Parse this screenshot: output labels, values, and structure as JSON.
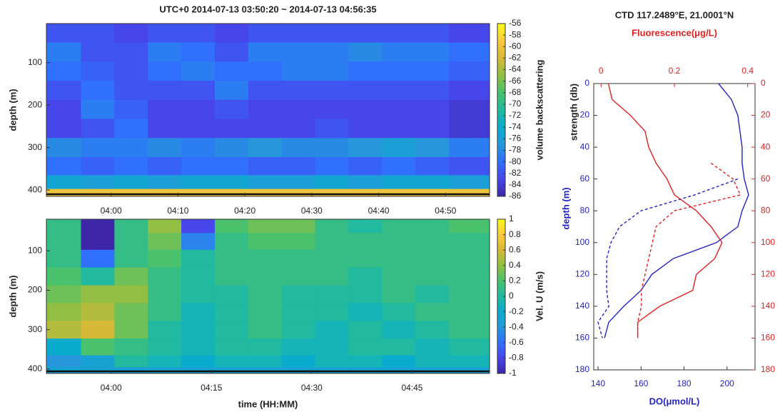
{
  "chart_data": [
    {
      "type": "heatmap",
      "title": "UTC+0 2014-07-13 03:50:20 ~ 2014-07-13 04:56:35",
      "ylabel": "depth (m)",
      "colorbar_label": "volume backscattering",
      "colormap": "parula",
      "x": [
        233,
        238,
        243,
        248,
        253,
        258,
        263,
        268,
        273,
        278,
        283,
        288,
        293
      ],
      "y": [
        30,
        75,
        120,
        165,
        210,
        255,
        300,
        345,
        385,
        410
      ],
      "z": [
        [
          -82,
          -82,
          -83,
          -82,
          -82,
          -83,
          -82,
          -82,
          -82,
          -82,
          -82,
          -82,
          -83
        ],
        [
          -79,
          -82,
          -82,
          -79,
          -80,
          -82,
          -79,
          -79,
          -79,
          -78,
          -79,
          -79,
          -80
        ],
        [
          -80,
          -81,
          -82,
          -80,
          -79,
          -80,
          -80,
          -79,
          -79,
          -80,
          -80,
          -80,
          -81
        ],
        [
          -82,
          -80,
          -82,
          -82,
          -82,
          -79,
          -82,
          -82,
          -82,
          -82,
          -82,
          -82,
          -83
        ],
        [
          -83,
          -79,
          -81,
          -83,
          -83,
          -82,
          -83,
          -83,
          -83,
          -83,
          -83,
          -83,
          -84
        ],
        [
          -83,
          -82,
          -80,
          -83,
          -83,
          -83,
          -83,
          -83,
          -82,
          -83,
          -83,
          -83,
          -84
        ],
        [
          -78,
          -79,
          -79,
          -78,
          -79,
          -78,
          -77,
          -78,
          -78,
          -77,
          -76,
          -77,
          -79
        ],
        [
          -80,
          -81,
          -80,
          -81,
          -80,
          -80,
          -81,
          -81,
          -80,
          -81,
          -80,
          -81,
          -82
        ],
        [
          -75,
          -76,
          -75,
          -76,
          -75,
          -75,
          -76,
          -76,
          -75,
          -76,
          -75,
          -75,
          -76
        ],
        [
          -60,
          -60,
          -60,
          -60,
          -60,
          -60,
          -60,
          -60,
          -60,
          -60,
          -60,
          -60,
          -60
        ]
      ],
      "xlim": [
        230.33,
        296.58
      ],
      "xticks": [
        {
          "value": 240,
          "label": "04:00"
        },
        {
          "value": 250,
          "label": "04:10"
        },
        {
          "value": 260,
          "label": "04:20"
        },
        {
          "value": 270,
          "label": "04:30"
        },
        {
          "value": 280,
          "label": "04:40"
        },
        {
          "value": 290,
          "label": "04:50"
        }
      ],
      "ylim": [
        8,
        415
      ],
      "yticks": [
        100,
        200,
        300,
        400
      ],
      "clim": [
        -86,
        -56
      ],
      "cticks": [
        -56,
        -58,
        -60,
        -62,
        -64,
        -66,
        -68,
        -70,
        -72,
        -74,
        -76,
        -78,
        -80,
        -82,
        -84,
        -86
      ]
    },
    {
      "type": "heatmap",
      "xlabel": "time (HH:MM)",
      "ylabel": "depth (m)",
      "colorbar_label": "Vel. U (m/s)",
      "colormap": "parula",
      "x": [
        233,
        238,
        243,
        248,
        253,
        258,
        263,
        268,
        273,
        278,
        283,
        288,
        293
      ],
      "y": [
        35,
        75,
        120,
        165,
        210,
        255,
        300,
        345,
        385,
        405
      ],
      "z": [
        [
          0.1,
          -1,
          0.1,
          0.4,
          -0.8,
          0.2,
          0.3,
          0.3,
          0.1,
          0.0,
          0.1,
          0.1,
          0.2
        ],
        [
          0.1,
          -1,
          0.1,
          0.3,
          -0.5,
          0.1,
          0.2,
          0.2,
          0.1,
          0.1,
          0.1,
          0.1,
          0.1
        ],
        [
          0.1,
          -0.6,
          0.1,
          0.2,
          0.0,
          0.1,
          0.1,
          0.1,
          0.1,
          0.1,
          0.1,
          0.1,
          0.1
        ],
        [
          0.2,
          0.0,
          0.3,
          0.1,
          0.0,
          0.1,
          0.1,
          0.1,
          0.1,
          0.0,
          0.1,
          0.1,
          0.1
        ],
        [
          0.3,
          0.4,
          0.4,
          0.1,
          0.0,
          0.0,
          0.1,
          0.0,
          0.0,
          0.0,
          0.1,
          0.0,
          0.1
        ],
        [
          0.4,
          0.5,
          0.3,
          0.1,
          -0.1,
          0.0,
          0.1,
          0.0,
          0.0,
          -0.1,
          0.0,
          0.1,
          0.1
        ],
        [
          0.5,
          0.6,
          0.3,
          0.0,
          -0.1,
          0.0,
          0.1,
          0.0,
          -0.1,
          0.0,
          -0.1,
          0.0,
          0.1
        ],
        [
          -0.2,
          0.2,
          0.1,
          0.0,
          -0.1,
          0.0,
          0.0,
          -0.1,
          -0.1,
          0.0,
          0.0,
          -0.1,
          0.0
        ],
        [
          -0.4,
          -0.3,
          0.0,
          -0.1,
          -0.2,
          -0.1,
          -0.1,
          -0.2,
          -0.1,
          -0.1,
          -0.2,
          -0.1,
          -0.1
        ],
        [
          -0.3,
          -0.3,
          -0.3,
          -0.3,
          -0.3,
          -0.3,
          -0.3,
          -0.3,
          -0.3,
          -0.3,
          -0.3,
          -0.3,
          -0.3
        ]
      ],
      "xlim": [
        230.33,
        296.58
      ],
      "xticks": [
        {
          "value": 240,
          "label": "04:00"
        },
        {
          "value": 255,
          "label": "04:15"
        },
        {
          "value": 270,
          "label": "04:30"
        },
        {
          "value": 285,
          "label": "04:45"
        }
      ],
      "ylim": [
        20,
        411
      ],
      "yticks": [
        100,
        200,
        300,
        400
      ],
      "clim": [
        -1,
        1
      ],
      "cticks": [
        1,
        0.8,
        0.6,
        0.4,
        0.2,
        0,
        -0.2,
        -0.4,
        -0.6,
        -0.8,
        -1
      ]
    },
    {
      "type": "profile",
      "title": "CTD  117.2489°E, 21.0001°N",
      "xlabel": "DO(μmol/L)",
      "x2label": "Fluorescence(μg/L)",
      "ylabel": "depth (m)",
      "y2label": "strength (db)",
      "xcolor": "#2424c0",
      "x2color": "#e02222",
      "y": [
        0,
        10,
        20,
        30,
        40,
        50,
        60,
        70,
        80,
        90,
        100,
        110,
        120,
        130,
        140,
        150,
        160
      ],
      "series": [
        {
          "color": "#2424c0",
          "dashed": false,
          "axis": "x",
          "values": [
            196,
            202,
            205,
            206,
            207,
            207,
            208,
            210,
            207,
            205,
            195,
            175,
            165,
            160,
            152,
            145,
            143
          ]
        },
        {
          "color": "#2424c0",
          "dashed": true,
          "axis": "x",
          "values": [
            null,
            null,
            null,
            null,
            null,
            null,
            205,
            185,
            160,
            150,
            146,
            144,
            144,
            144,
            145,
            140,
            142
          ]
        },
        {
          "color": "#e02222",
          "dashed": false,
          "axis": "x2",
          "values": [
            0.02,
            0.03,
            0.08,
            0.12,
            0.13,
            0.15,
            0.18,
            0.2,
            0.26,
            0.3,
            0.33,
            0.31,
            0.26,
            0.25,
            0.16,
            0.1,
            0.1
          ]
        },
        {
          "color": "#e02222",
          "dashed": true,
          "axis": "x2",
          "values": [
            null,
            null,
            null,
            null,
            null,
            0.3,
            0.36,
            0.38,
            0.2,
            0.15,
            0.14,
            0.13,
            0.12,
            0.11,
            0.11,
            0.1,
            0.1
          ]
        }
      ],
      "xlim": [
        138,
        213
      ],
      "xticks": [
        140,
        160,
        180,
        200
      ],
      "x2lim": [
        -0.02,
        0.42
      ],
      "x2ticks": [
        0,
        0.2,
        0.4
      ],
      "ylim": [
        0,
        180
      ],
      "yticks": [
        0,
        20,
        40,
        60,
        80,
        100,
        120,
        140,
        160,
        180
      ],
      "y2ticks": [
        0,
        20,
        40,
        60,
        80,
        100,
        120,
        140,
        160,
        180
      ]
    }
  ]
}
